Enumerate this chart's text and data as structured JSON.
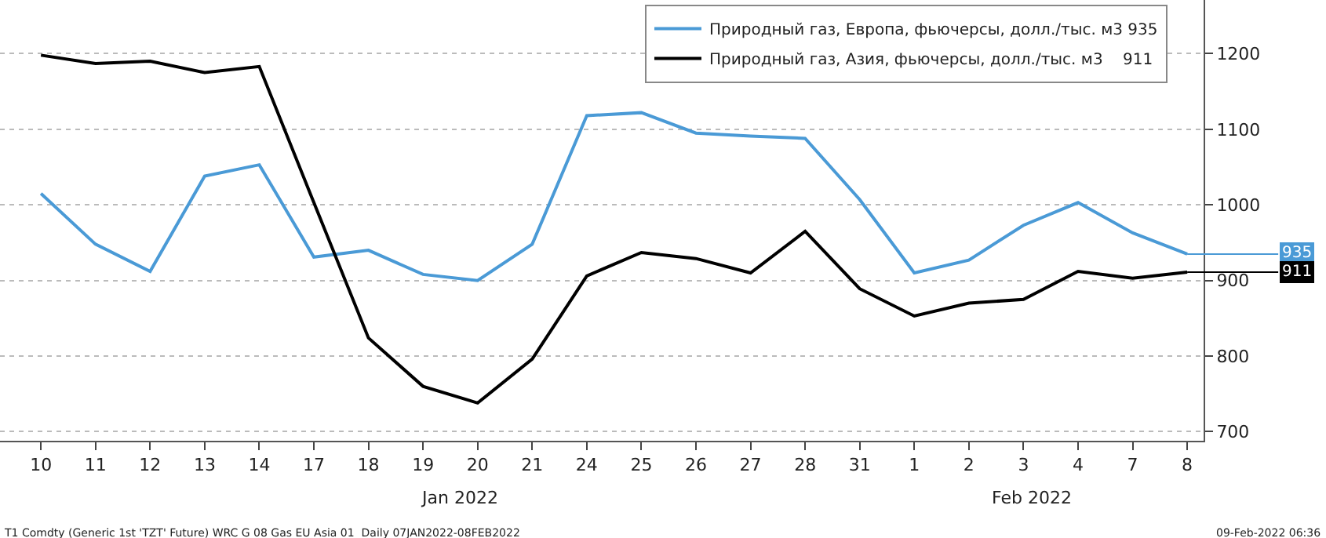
{
  "chart_data": {
    "type": "line",
    "categories": [
      "10",
      "11",
      "12",
      "13",
      "14",
      "17",
      "18",
      "19",
      "20",
      "21",
      "24",
      "25",
      "26",
      "27",
      "28",
      "31",
      "1",
      "2",
      "3",
      "4",
      "7",
      "8"
    ],
    "series": [
      {
        "name": "Природный газ, Европа, фьючерсы, долл./тыс. м3 935",
        "color": "#4a9ad6",
        "values": [
          1015,
          948,
          912,
          1038,
          1053,
          931,
          940,
          908,
          900,
          948,
          1118,
          1122,
          1095,
          1091,
          1088,
          1007,
          910,
          927,
          973,
          1003,
          963,
          935
        ]
      },
      {
        "name": "Природный газ, Азия, фьючерсы, долл./тыс. м3    911",
        "color": "#000000",
        "values": [
          1198,
          1187,
          1190,
          1175,
          1183,
          1003,
          824,
          760,
          738,
          796,
          906,
          937,
          929,
          910,
          965,
          889,
          853,
          870,
          875,
          912,
          903,
          911
        ]
      }
    ],
    "ylim": [
      688,
      1271
    ],
    "yticks": [
      700,
      800,
      900,
      1000,
      1100,
      1200
    ],
    "grid": "y",
    "legend": "top right",
    "marker": "none",
    "line_style": "solid",
    "annotations": [
      {
        "text": "935",
        "x": "8",
        "y": 935
      },
      {
        "text": "911",
        "x": "8",
        "y": 911
      },
      "Jan 2022",
      "Feb 2022",
      "T1 Comdty (Generic 1st 'TZT' Future) WRC G 08 Gas EU Asia 01  Daily 07JAN2022-08FEB2022",
      "09-Feb-2022 06:36"
    ]
  }
}
